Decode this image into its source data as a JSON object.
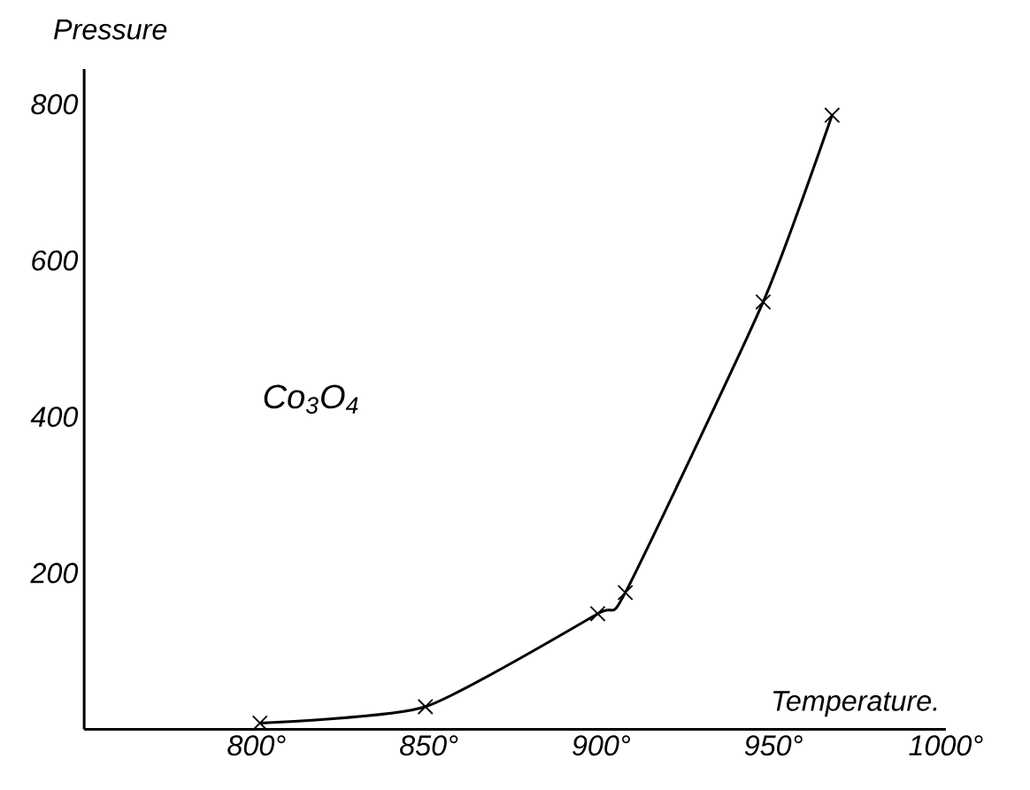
{
  "chart_data": {
    "type": "line",
    "xlabel": "Temperature.",
    "ylabel": "Pressure",
    "annotations": [
      "Co$_{3}$O$_{4}$"
    ],
    "x": [
      801,
      849,
      899,
      907,
      947,
      967
    ],
    "series": [
      {
        "color": "#000000",
        "values": [
          8,
          29,
          148,
          175,
          547,
          786
        ]
      }
    ],
    "xlim": [
      750,
      1000
    ],
    "ylim": [
      0,
      845
    ],
    "xticks": [
      {
        "value": 800,
        "label": "800°"
      },
      {
        "value": 850,
        "label": "850°"
      },
      {
        "value": 900,
        "label": "900°"
      },
      {
        "value": 950,
        "label": "950°"
      },
      {
        "value": 1000,
        "label": "1000°"
      }
    ],
    "yticks": [
      200,
      400,
      600,
      800
    ],
    "marker": "cross",
    "line_style": "solid",
    "grid": false
  }
}
